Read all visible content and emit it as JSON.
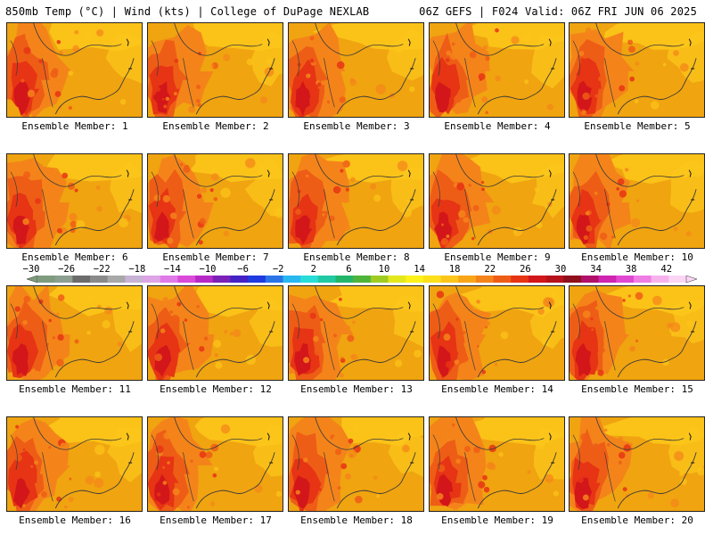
{
  "header": {
    "left_title": "850mb Temp (°C) | Wind (kts) | College of DuPage NEXLAB",
    "right_title": "06Z GEFS | F024 Valid: 06Z FRI JUN 06 2025"
  },
  "colorbar": {
    "ticks": [
      "−30",
      "−26",
      "−22",
      "−18",
      "−14",
      "−10",
      "−6",
      "−2",
      "2",
      "6",
      "10",
      "14",
      "18",
      "22",
      "26",
      "30",
      "34",
      "38",
      "42"
    ],
    "colors": [
      "#7f9b7e",
      "#8d9f90",
      "#6c6c6c",
      "#8a8a8a",
      "#a8a8a8",
      "#c7b3d6",
      "#dda4e6",
      "#e07ae8",
      "#d94ad9",
      "#b629c7",
      "#7a22b8",
      "#4422c4",
      "#1f3ae0",
      "#2a74e8",
      "#29b7f0",
      "#28dcd8",
      "#21c9a3",
      "#23b66a",
      "#4fb43a",
      "#9fcc23",
      "#e3e81c",
      "#fcf21a",
      "#fce01a",
      "#fcc51a",
      "#f8a618",
      "#f4841a",
      "#ee5d16",
      "#e63414",
      "#d3161a",
      "#b6121c",
      "#8f0f1c",
      "#b0106a",
      "#cf25b0",
      "#e048d2",
      "#ef7de3",
      "#f7b2ee",
      "#fad6f4"
    ]
  },
  "members": [
    {
      "label": "Ensemble Member: 1"
    },
    {
      "label": "Ensemble Member: 2"
    },
    {
      "label": "Ensemble Member: 3"
    },
    {
      "label": "Ensemble Member: 4"
    },
    {
      "label": "Ensemble Member: 5"
    },
    {
      "label": "Ensemble Member: 6"
    },
    {
      "label": "Ensemble Member: 7"
    },
    {
      "label": "Ensemble Member: 8"
    },
    {
      "label": "Ensemble Member: 9"
    },
    {
      "label": "Ensemble Member: 10"
    },
    {
      "label": "Ensemble Member: 11"
    },
    {
      "label": "Ensemble Member: 12"
    },
    {
      "label": "Ensemble Member: 13"
    },
    {
      "label": "Ensemble Member: 14"
    },
    {
      "label": "Ensemble Member: 15"
    },
    {
      "label": "Ensemble Member: 16"
    },
    {
      "label": "Ensemble Member: 17"
    },
    {
      "label": "Ensemble Member: 18"
    },
    {
      "label": "Ensemble Member: 19"
    },
    {
      "label": "Ensemble Member: 20"
    }
  ],
  "map_colors": {
    "base": "#f0a410",
    "warm": "#f4841a",
    "hot": "#ee5d16",
    "hotter": "#e63414",
    "hottest": "#d3161a",
    "cool": "#fcc51a",
    "coolest": "#fce01a",
    "outline": "#3a3a3a"
  }
}
